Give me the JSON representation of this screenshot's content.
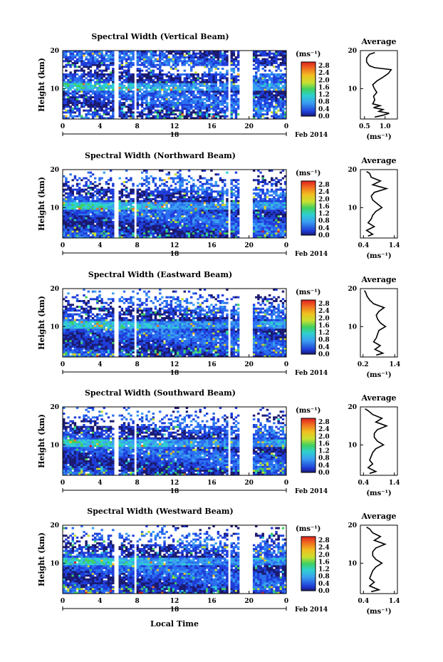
{
  "figure": {
    "x_axis_label": "Local Time",
    "date_label": "Feb 2014",
    "day_label": "18"
  },
  "chart_data": [
    {
      "type": "heatmap",
      "title": "Spectral Width (Vertical Beam)",
      "beam": "vertical",
      "xlabel": "Local Time",
      "ylabel": "Height (km)",
      "xticks": [
        "0",
        "4",
        "8",
        "12",
        "16",
        "20",
        "0"
      ],
      "xlim": [
        0,
        24
      ],
      "yticks": [
        "10",
        "20"
      ],
      "ylim": [
        2,
        20
      ],
      "colorbar": {
        "label": "(ms⁻¹)",
        "ticks": [
          "0.0",
          "0.4",
          "0.8",
          "1.2",
          "1.6",
          "2.0",
          "2.4",
          "2.8"
        ],
        "range": [
          0.0,
          3.0
        ]
      },
      "data_gaps_hours": [
        [
          5.6,
          5.9
        ],
        [
          7.7,
          8.0
        ],
        [
          17.7,
          18.1
        ],
        [
          19.0,
          20.3
        ]
      ],
      "average_profile": {
        "title": "Average",
        "xlabel": "(ms⁻¹)",
        "xticks": [
          "0.5",
          "1.0"
        ],
        "xlim": [
          0.4,
          1.3
        ],
        "yticks": [
          "10",
          "20"
        ],
        "height_km": [
          2.5,
          3,
          3.5,
          4,
          4.5,
          5,
          5.5,
          6,
          7,
          8,
          9,
          10,
          11,
          12,
          13,
          14,
          15,
          15.5,
          16,
          17,
          18,
          19,
          19.5
        ],
        "width": [
          0.75,
          0.95,
          1.1,
          0.85,
          0.95,
          0.72,
          0.88,
          0.7,
          0.75,
          0.72,
          0.8,
          0.74,
          0.7,
          0.8,
          0.95,
          1.08,
          1.15,
          0.75,
          0.62,
          0.55,
          0.55,
          0.62,
          0.75
        ]
      }
    },
    {
      "type": "heatmap",
      "title": "Spectral Width (Northward Beam)",
      "beam": "northward",
      "xlabel": "Local Time",
      "ylabel": "Height (km)",
      "xticks": [
        "0",
        "4",
        "8",
        "12",
        "16",
        "20",
        "0"
      ],
      "xlim": [
        0,
        24
      ],
      "yticks": [
        "10",
        "20"
      ],
      "ylim": [
        2,
        20
      ],
      "colorbar": {
        "label": "(ms⁻¹)",
        "ticks": [
          "0.0",
          "0.4",
          "0.8",
          "1.2",
          "1.6",
          "2.0",
          "2.4",
          "2.8"
        ],
        "range": [
          0.0,
          3.0
        ]
      },
      "data_gaps_hours": [
        [
          5.6,
          5.9
        ],
        [
          7.7,
          8.0
        ],
        [
          17.7,
          18.1
        ],
        [
          19.0,
          20.3
        ]
      ],
      "average_profile": {
        "title": "Average",
        "xlabel": "(ms⁻¹)",
        "xticks": [
          "0.4",
          "1.4"
        ],
        "xlim": [
          0.3,
          1.5
        ],
        "yticks": [
          "10",
          "20"
        ],
        "height_km": [
          2.5,
          3,
          4,
          5,
          6,
          7,
          8,
          9,
          10,
          11,
          12,
          13,
          14,
          15,
          16,
          17,
          18,
          19,
          19.5
        ],
        "width": [
          0.55,
          0.7,
          0.5,
          0.75,
          0.55,
          0.65,
          0.7,
          0.8,
          1.0,
          0.85,
          0.7,
          0.65,
          0.75,
          1.15,
          0.7,
          0.95,
          0.65,
          0.6,
          0.5
        ]
      }
    },
    {
      "type": "heatmap",
      "title": "Spectral Width (Eastward Beam)",
      "beam": "eastward",
      "xlabel": "Local Time",
      "ylabel": "Height (km)",
      "xticks": [
        "0",
        "4",
        "8",
        "12",
        "16",
        "20",
        "0"
      ],
      "xlim": [
        0,
        24
      ],
      "yticks": [
        "10",
        "20"
      ],
      "ylim": [
        2,
        20
      ],
      "colorbar": {
        "label": "(ms⁻¹)",
        "ticks": [
          "0.0",
          "0.4",
          "0.8",
          "1.2",
          "1.6",
          "2.0",
          "2.4",
          "2.8"
        ],
        "range": [
          0.0,
          3.0
        ]
      },
      "data_gaps_hours": [
        [
          5.6,
          5.9
        ],
        [
          7.7,
          8.0
        ],
        [
          17.7,
          18.1
        ],
        [
          19.0,
          20.3
        ]
      ],
      "average_profile": {
        "title": "Average",
        "xlabel": "(ms⁻¹)",
        "xticks": [
          "0.2",
          "1.4"
        ],
        "xlim": [
          0.1,
          1.5
        ],
        "yticks": [
          "10",
          "20"
        ],
        "height_km": [
          2.5,
          3,
          4,
          5,
          6,
          7,
          8,
          9,
          10,
          11,
          12,
          13,
          14,
          15,
          16,
          17,
          18,
          19,
          19.5
        ],
        "width": [
          0.7,
          0.95,
          0.65,
          0.85,
          0.6,
          0.7,
          0.75,
          0.8,
          1.05,
          0.85,
          0.75,
          0.7,
          0.8,
          1.0,
          0.6,
          0.45,
          0.35,
          0.3,
          0.25
        ]
      }
    },
    {
      "type": "heatmap",
      "title": "Spectral Width (Southward Beam)",
      "beam": "southward",
      "xlabel": "Local Time",
      "ylabel": "Height (km)",
      "xticks": [
        "0",
        "4",
        "8",
        "12",
        "16",
        "20",
        "0"
      ],
      "xlim": [
        0,
        24
      ],
      "yticks": [
        "10",
        "20"
      ],
      "ylim": [
        2,
        20
      ],
      "colorbar": {
        "label": "(ms⁻¹)",
        "ticks": [
          "0.0",
          "0.4",
          "0.8",
          "1.2",
          "1.6",
          "2.0",
          "2.4",
          "2.8"
        ],
        "range": [
          0.0,
          3.0
        ]
      },
      "data_gaps_hours": [
        [
          5.6,
          5.9
        ],
        [
          7.7,
          8.0
        ],
        [
          17.7,
          18.1
        ],
        [
          19.0,
          20.3
        ]
      ],
      "average_profile": {
        "title": "Average",
        "xlabel": "(ms⁻¹)",
        "xticks": [
          "0.4",
          "1.4"
        ],
        "xlim": [
          0.3,
          1.5
        ],
        "yticks": [
          "10",
          "20"
        ],
        "height_km": [
          2.5,
          3,
          4,
          5,
          6,
          7,
          8,
          9,
          10,
          11,
          12,
          13,
          14,
          15,
          16,
          17,
          18,
          19,
          19.5
        ],
        "width": [
          0.6,
          0.8,
          0.55,
          0.7,
          0.6,
          0.65,
          0.7,
          0.8,
          1.05,
          0.85,
          0.75,
          0.75,
          0.85,
          1.15,
          0.8,
          1.0,
          0.7,
          0.55,
          0.45
        ]
      }
    },
    {
      "type": "heatmap",
      "title": "Spectral Width (Westward Beam)",
      "beam": "westward",
      "xlabel": "Local Time",
      "ylabel": "Height (km)",
      "xticks": [
        "0",
        "4",
        "8",
        "12",
        "16",
        "20",
        "0"
      ],
      "xlim": [
        0,
        24
      ],
      "yticks": [
        "10",
        "20"
      ],
      "ylim": [
        2,
        20
      ],
      "colorbar": {
        "label": "(ms⁻¹)",
        "ticks": [
          "0.0",
          "0.4",
          "0.8",
          "1.2",
          "1.6",
          "2.0",
          "2.4",
          "2.8"
        ],
        "range": [
          0.0,
          3.0
        ]
      },
      "data_gaps_hours": [
        [
          5.6,
          5.9
        ],
        [
          7.7,
          8.0
        ],
        [
          17.7,
          18.1
        ],
        [
          19.0,
          20.3
        ]
      ],
      "average_profile": {
        "title": "Average",
        "xlabel": "(ms⁻¹)",
        "xticks": [
          "0.4",
          "1.4"
        ],
        "xlim": [
          0.3,
          1.5
        ],
        "yticks": [
          "10",
          "20"
        ],
        "height_km": [
          2.5,
          3,
          4,
          5,
          6,
          7,
          8,
          9,
          10,
          11,
          12,
          13,
          14,
          15,
          16,
          17,
          18,
          19,
          19.5
        ],
        "width": [
          0.65,
          0.9,
          0.6,
          0.75,
          0.6,
          0.65,
          0.7,
          0.8,
          1.0,
          0.8,
          0.7,
          0.7,
          0.8,
          1.1,
          0.75,
          0.95,
          0.7,
          0.6,
          0.5
        ]
      }
    }
  ]
}
